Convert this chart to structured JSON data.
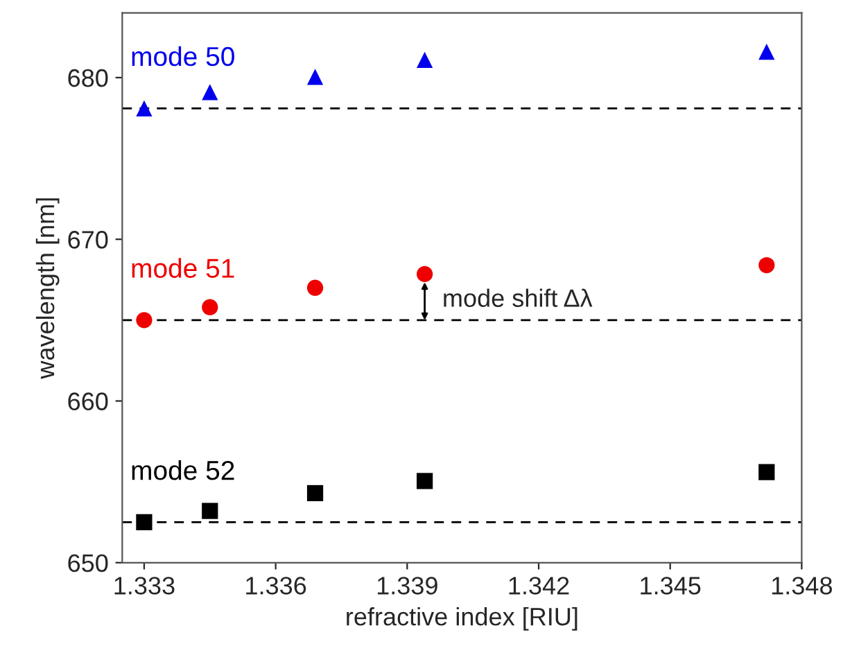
{
  "chart_data": {
    "type": "scatter",
    "xlabel": "refractive index [RIU]",
    "ylabel": "wavelength [nm]",
    "x": [
      1.333,
      1.3345,
      1.3369,
      1.3394,
      1.3472
    ],
    "series": [
      {
        "name": "mode 50",
        "color": "#0000ee",
        "marker": "triangle",
        "values": [
          678.1,
          679.1,
          680.05,
          681.1,
          681.6
        ]
      },
      {
        "name": "mode 51",
        "color": "#ee0000",
        "marker": "circle",
        "values": [
          665.0,
          665.8,
          667.0,
          667.85,
          668.4
        ]
      },
      {
        "name": "mode 52",
        "color": "#000000",
        "marker": "square",
        "values": [
          652.5,
          653.2,
          654.3,
          655.05,
          655.6
        ]
      }
    ],
    "xlim": [
      1.3325,
      1.348
    ],
    "xticks": [
      {
        "value": 1.333,
        "label": "1.333"
      },
      {
        "value": 1.336,
        "label": "1.336"
      },
      {
        "value": 1.339,
        "label": "1.339"
      },
      {
        "value": 1.342,
        "label": "1.342"
      },
      {
        "value": 1.345,
        "label": "1.345"
      },
      {
        "value": 1.348,
        "label": "1.348"
      }
    ],
    "ylim": [
      650,
      684
    ],
    "yticks": [
      650,
      660,
      670,
      680
    ],
    "ref_lines": [
      {
        "axis": "y",
        "value": 678.1,
        "color": "#000000",
        "line_style": "dashed"
      },
      {
        "axis": "y",
        "value": 665.0,
        "color": "#000000",
        "line_style": "dashed"
      },
      {
        "axis": "y",
        "value": 652.5,
        "color": "#000000",
        "line_style": "dashed"
      }
    ],
    "annotations": [
      {
        "text": "mode shift Δλ",
        "x": 1.3394,
        "y": 667.85
      }
    ],
    "grid": false,
    "legend": false
  }
}
